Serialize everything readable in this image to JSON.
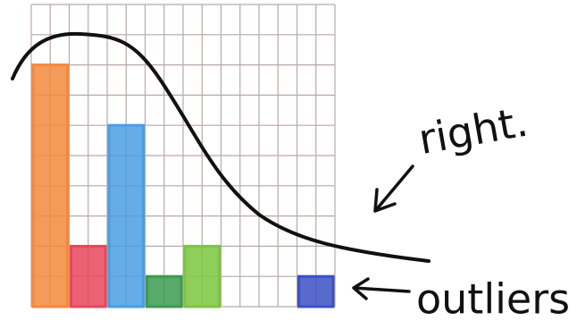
{
  "chart_data": {
    "type": "bar",
    "categories": [
      null,
      null,
      null,
      null,
      null,
      null,
      null,
      null
    ],
    "values": [
      8,
      2,
      6,
      1,
      2,
      0,
      0,
      1
    ],
    "colors": [
      "#f3893c",
      "#e8475c",
      "#4b9de2",
      "#3c9a50",
      "#7dc540",
      "#cccccc",
      "#cccccc",
      "#3c50c4"
    ],
    "ylim": [
      0,
      10
    ],
    "grid": true,
    "annotations": [
      "right.",
      "outliers"
    ]
  }
}
